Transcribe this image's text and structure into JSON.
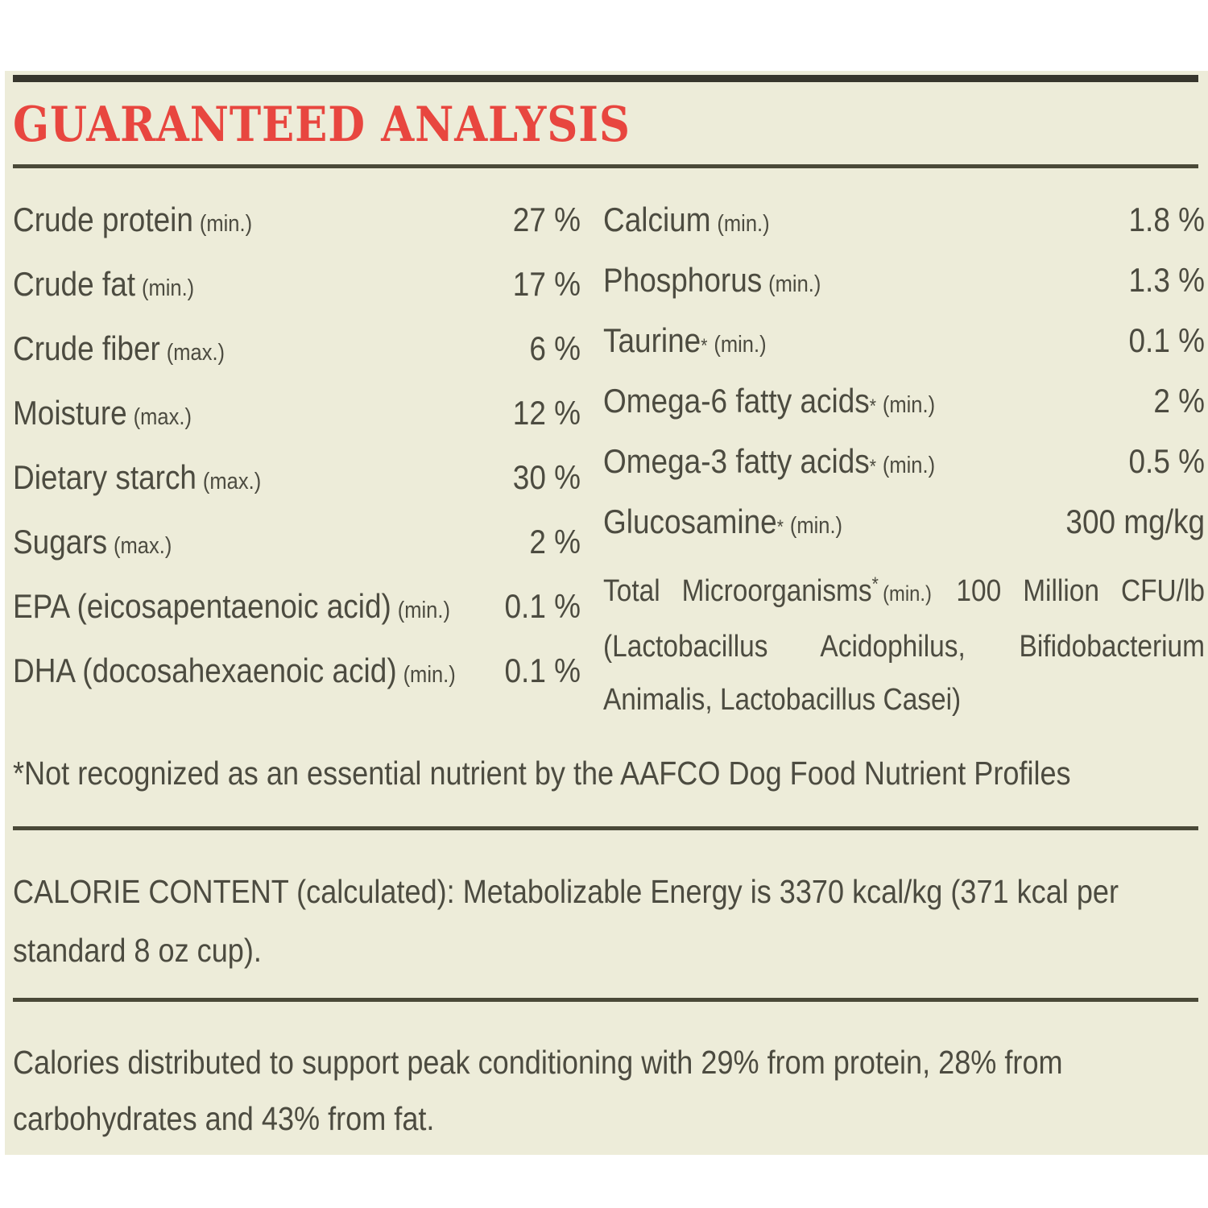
{
  "colors": {
    "background": "#edecd9",
    "text": "#4c4b40",
    "title_red": "#e8463f",
    "rule": "#4a4938",
    "top_bar": "#37362d"
  },
  "title": "GUARANTEED ANALYSIS",
  "nutrients": {
    "left": [
      {
        "label": "Crude protein",
        "qualifier": "(min.)",
        "value": "27 %"
      },
      {
        "label": "Crude fat",
        "qualifier": "(min.)",
        "value": "17 %"
      },
      {
        "label": "Crude fiber",
        "qualifier": "(max.)",
        "value": "6 %"
      },
      {
        "label": "Moisture",
        "qualifier": "(max.)",
        "value": "12 %"
      },
      {
        "label": "Dietary starch",
        "qualifier": "(max.)",
        "value": "30 %"
      },
      {
        "label": "Sugars",
        "qualifier": "(max.)",
        "value": "2 %"
      },
      {
        "label": "EPA (eicosapentaenoic acid)",
        "qualifier": "(min.)",
        "value": "0.1 %"
      },
      {
        "label": "DHA (docosahexaenoic acid)",
        "qualifier": "(min.)",
        "value": "0.1 %"
      }
    ],
    "right": [
      {
        "label": "Calcium",
        "sup": "",
        "qualifier": "(min.)",
        "value": "1.8 %"
      },
      {
        "label": "Phosphorus",
        "sup": "",
        "qualifier": "(min.)",
        "value": "1.3 %"
      },
      {
        "label": "Taurine",
        "sup": "*",
        "qualifier": "(min.)",
        "value": "0.1 %"
      },
      {
        "label": "Omega-6 fatty acids",
        "sup": "*",
        "qualifier": "(min.)",
        "value": "2 %"
      },
      {
        "label": "Omega-3 fatty acids",
        "sup": "*",
        "qualifier": "(min.)",
        "value": "0.5 %"
      },
      {
        "label": "Glucosamine",
        "sup": "*",
        "qualifier": "(min.)",
        "value": "300 mg/kg"
      },
      {
        "label": "Total Microorganisms",
        "sup": "*",
        "qualifier": "(min.)",
        "value": "100 Million CFU/lb",
        "detail": "(Lactobacillus Acidophilus, Bifidobacterium Animalis, Lactobacillus Casei)"
      }
    ]
  },
  "footnote": "*Not recognized as an essential nutrient by the AAFCO Dog Food Nutrient Profiles",
  "calorie_content": "CALORIE CONTENT (calculated): Metabolizable Energy is 3370 kcal/kg (371 kcal per standard 8 oz cup).",
  "calorie_distribution": "Calories distributed to support peak conditioning with 29% from protein, 28% from carbohydrates and 43% from fat."
}
